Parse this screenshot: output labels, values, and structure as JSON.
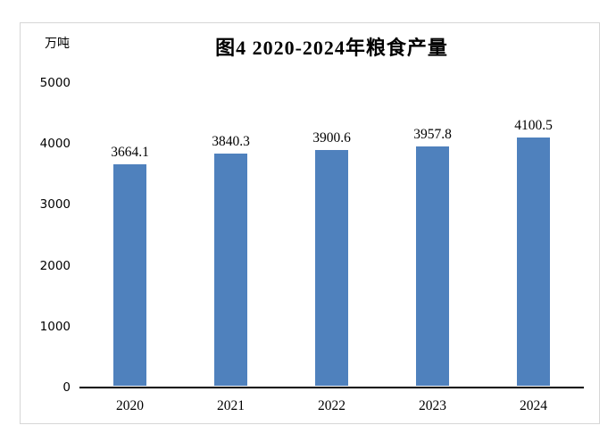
{
  "chart_data": {
    "type": "bar",
    "title": "图4 2020-2024年粮食产量",
    "unit_label": "万吨",
    "categories": [
      "2020",
      "2021",
      "2022",
      "2023",
      "2024"
    ],
    "values": [
      3664.1,
      3840.3,
      3900.6,
      3957.8,
      4100.5
    ],
    "value_labels": [
      "3664.1",
      "3840.3",
      "3900.6",
      "3957.8",
      "4100.5"
    ],
    "xlabel": "",
    "ylabel": "万吨",
    "ylim": [
      0,
      5000
    ],
    "ytick_interval": 1000,
    "yticks": [
      0,
      1000,
      2000,
      3000,
      4000,
      5000
    ],
    "grid": false,
    "legend_position": "none",
    "colors": {
      "bar_fill": "#4f81bd",
      "axis_line": "#000000",
      "frame_border": "#d6d6d6",
      "text": "#000000",
      "background": "#ffffff"
    }
  }
}
